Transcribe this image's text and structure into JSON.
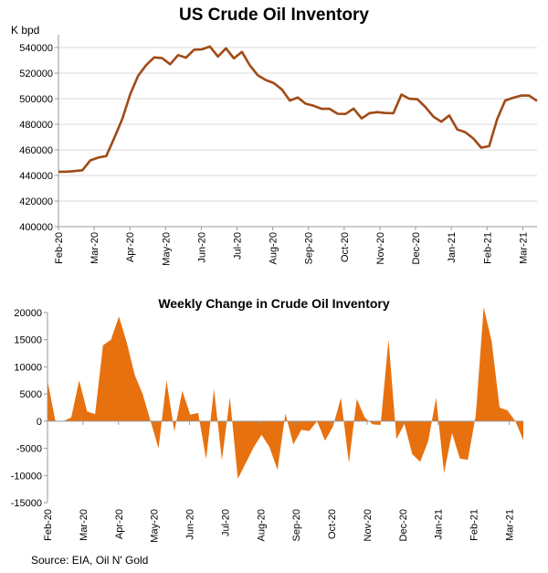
{
  "source_note": "Source: EIA, Oil N' Gold",
  "colors": {
    "line": "#a04a16",
    "area": "#e8710f",
    "axis": "#9a9a9a",
    "grid": "#d9d9d9"
  },
  "chart_data": [
    {
      "type": "line",
      "title": "US Crude Oil Inventory",
      "ylabel": "K bpd",
      "xlabel": "",
      "ylim": [
        400000,
        550000
      ],
      "yticks": [
        "400000",
        "420000",
        "440000",
        "460000",
        "480000",
        "500000",
        "520000",
        "540000"
      ],
      "grid": "horizontal",
      "xtick_labels": [
        "Feb-20",
        "Mar-20",
        "Apr-20",
        "May-20",
        "Jun-20",
        "Jul-20",
        "Aug-20",
        "Sep-20",
        "Oct-20",
        "Nov-20",
        "Dec-20",
        "Jan-21",
        "Feb-21",
        "Mar-21"
      ],
      "x_start": "Feb-20",
      "x_end": "Mar-21",
      "series": [
        {
          "name": "US Crude Oil Inventory",
          "values": [
            442900,
            442900,
            443400,
            444100,
            451800,
            454000,
            455200,
            469300,
            484200,
            503500,
            518000,
            526300,
            532300,
            531700,
            526900,
            534100,
            532100,
            538300,
            538600,
            540800,
            532900,
            539400,
            531500,
            536600,
            526000,
            518300,
            514600,
            512200,
            507300,
            498600,
            500900,
            496100,
            494400,
            492100,
            492100,
            488200,
            488100,
            492300,
            484600,
            488700,
            489500,
            488800,
            488700,
            503200,
            499900,
            499600,
            493500,
            486000,
            482000,
            486900,
            475900,
            473800,
            469000,
            461700,
            462900,
            483900,
            498600,
            500700,
            502400,
            502400,
            498300
          ]
        }
      ]
    },
    {
      "type": "area",
      "title": "Weekly Change in Crude Oil Inventory",
      "ylabel": "",
      "xlabel": "",
      "ylim": [
        -15000,
        20000
      ],
      "yticks": [
        "-15000",
        "-10000",
        "-5000",
        "0",
        "5000",
        "10000",
        "15000",
        "20000"
      ],
      "grid": "none",
      "xtick_labels": [
        "Feb-20",
        "Mar-20",
        "Apr-20",
        "May-20",
        "Jun-20",
        "Jul-20",
        "Aug-20",
        "Sep-20",
        "Oct-20",
        "Nov-20",
        "Dec-20",
        "Jan-21",
        "Feb-21",
        "Mar-21"
      ],
      "x_start": "Feb-20",
      "x_end": "Mar-21",
      "series": [
        {
          "name": "Weekly Change",
          "values": [
            7500,
            0,
            0,
            700,
            7500,
            1800,
            1300,
            14000,
            15000,
            19300,
            14500,
            8500,
            5000,
            0,
            -5000,
            7500,
            -1900,
            5600,
            1200,
            1500,
            -7000,
            5900,
            -7200,
            4400,
            -10600,
            -7700,
            -4800,
            -2500,
            -4800,
            -9000,
            1400,
            -4300,
            -1600,
            -1800,
            0,
            -3600,
            -1000,
            4300,
            -7700,
            4100,
            700,
            -600,
            -700,
            15000,
            -3300,
            -500,
            -6100,
            -7500,
            -3700,
            4300,
            -9600,
            -2200,
            -6900,
            -7100,
            1000,
            21000,
            14700,
            2500,
            2000,
            0,
            -3500
          ]
        }
      ]
    }
  ]
}
